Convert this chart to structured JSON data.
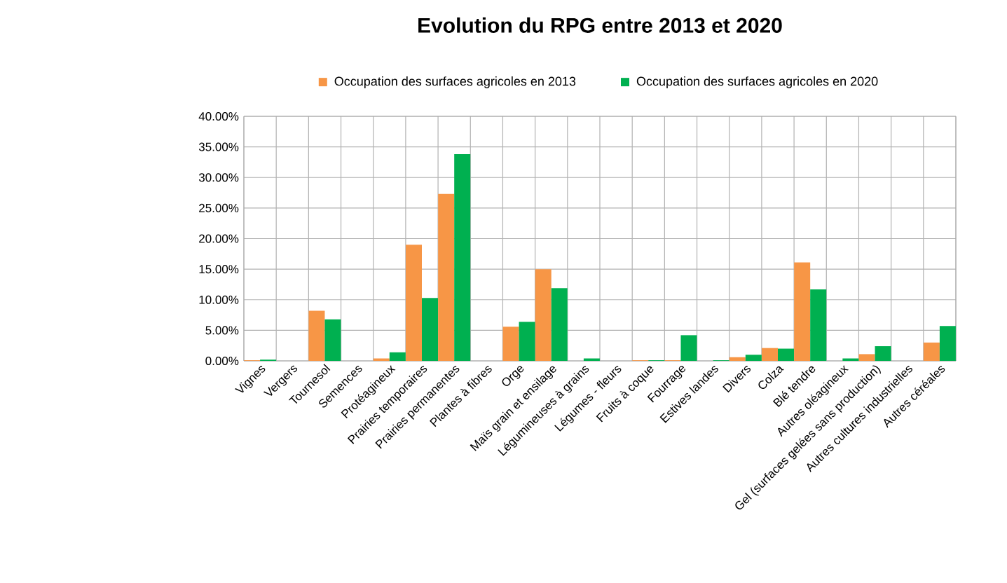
{
  "chart_data": {
    "type": "bar",
    "title": "Evolution du RPG entre 2013 et 2020",
    "categories": [
      "Vignes",
      "Vergers",
      "Tournesol",
      "Semences",
      "Protéagineux",
      "Prairies temporaires",
      "Prairies permanentes",
      "Plantes à fibres",
      "Orge",
      "Maïs grain et ensilage",
      "Légumineuses à grains",
      "Légumes - fleurs",
      "Fruits à coque",
      "Fourrage",
      "Estives landes",
      "Divers",
      "Colza",
      "Blé tendre",
      "Autres oléagineux",
      "Gel (surfaces gelées sans production)",
      "Autres cultures industrielles",
      "Autres céréales"
    ],
    "series": [
      {
        "name": "Occupation des surfaces agricoles en 2013",
        "color": "#f79646",
        "values": [
          0.1,
          0,
          8.2,
          0,
          0.4,
          19.0,
          27.3,
          0,
          5.6,
          15.0,
          0,
          0,
          0.1,
          0.1,
          0,
          0.6,
          2.1,
          16.1,
          0,
          1.1,
          0,
          3.0
        ]
      },
      {
        "name": "Occupation des surfaces agricoles en 2020",
        "color": "#00b050",
        "values": [
          0.2,
          0,
          6.8,
          0,
          1.4,
          10.3,
          33.8,
          0,
          6.4,
          11.9,
          0.4,
          0,
          0.1,
          4.2,
          0.1,
          1.0,
          2.0,
          11.7,
          0.4,
          2.4,
          0,
          5.7
        ]
      }
    ],
    "ylim": [
      0,
      40
    ],
    "yticks": [
      {
        "value": 0,
        "label": "0.00%"
      },
      {
        "value": 5,
        "label": "5.00%"
      },
      {
        "value": 10,
        "label": "10.00%"
      },
      {
        "value": 15,
        "label": "15.00%"
      },
      {
        "value": 20,
        "label": "20.00%"
      },
      {
        "value": 25,
        "label": "25.00%"
      },
      {
        "value": 30,
        "label": "30.00%"
      },
      {
        "value": 35,
        "label": "35.00%"
      },
      {
        "value": 40,
        "label": "40.00%"
      }
    ],
    "grid": true,
    "legend": "top"
  }
}
